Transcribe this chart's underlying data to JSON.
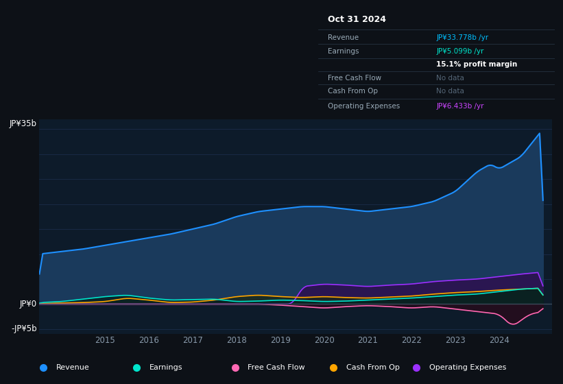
{
  "bg_color": "#0d1117",
  "plot_bg_color": "#0d1b2a",
  "ylabel_top": "JP¥35b",
  "ylabel_zero": "JP¥0",
  "ylabel_neg": "-JP¥5b",
  "ylim": [
    -6,
    37
  ],
  "info_box": {
    "date": "Oct 31 2024",
    "revenue_label": "Revenue",
    "revenue_value": "JP¥33.778b /yr",
    "revenue_color": "#00bfff",
    "earnings_label": "Earnings",
    "earnings_value": "JP¥5.099b /yr",
    "earnings_color": "#00e5cc",
    "profit_margin": "15.1% profit margin",
    "fcf_label": "Free Cash Flow",
    "fcf_value": "No data",
    "cashfromop_label": "Cash From Op",
    "cashfromop_value": "No data",
    "opex_label": "Operating Expenses",
    "opex_value": "JP¥6.433b /yr",
    "opex_color": "#cc44ff"
  },
  "legend": [
    {
      "label": "Revenue",
      "color": "#1e90ff"
    },
    {
      "label": "Earnings",
      "color": "#00e5cc"
    },
    {
      "label": "Free Cash Flow",
      "color": "#ff69b4"
    },
    {
      "label": "Cash From Op",
      "color": "#ffa500"
    },
    {
      "label": "Operating Expenses",
      "color": "#9b30ff"
    }
  ],
  "revenue_color": "#1e90ff",
  "revenue_fill": "#1a3a5c",
  "earnings_color": "#00e5cc",
  "fcf_color": "#ff69b4",
  "cashfromop_color": "#ffa500",
  "opex_color": "#9b30ff",
  "grid_color": "#1e3050",
  "zero_line_color": "#3a4a5a",
  "separator_color": "#2a3a4a",
  "label_color": "#9aabb8",
  "nodata_color": "#556677",
  "xaxis_label_color": "#8899aa"
}
